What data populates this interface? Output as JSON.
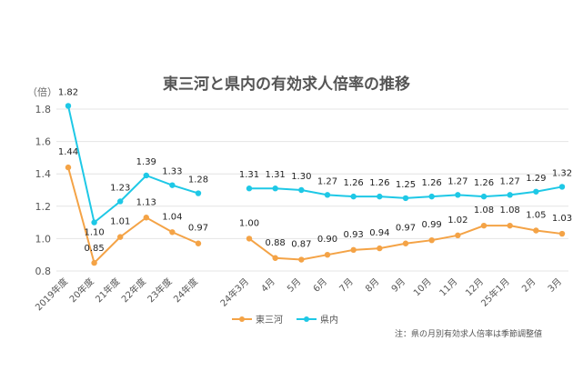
{
  "chart_data": {
    "type": "line",
    "title": "東三河と県内の有効求人倍率の推移",
    "unit_label": "（倍）",
    "note": "注：県の月別有効求人倍率は季節調整値",
    "ylim": [
      0.8,
      1.8
    ],
    "yticks": [
      "0.8",
      "1.0",
      "1.2",
      "1.4",
      "1.6",
      "1.8"
    ],
    "grid": "horizontal",
    "legend_position": "bottom-left",
    "colors": {
      "higashi_mikawa": "#f4a346",
      "kennai": "#1ec8e6"
    },
    "groups": [
      {
        "categories": [
          "2019年度",
          "20年度",
          "21年度",
          "22年度",
          "23年度",
          "24年度"
        ],
        "series": [
          {
            "name": "県内",
            "values": [
              1.82,
              1.1,
              1.23,
              1.39,
              1.33,
              1.28
            ],
            "labels": [
              "1.82",
              "1.10",
              "1.23",
              "1.39",
              "1.33",
              "1.28"
            ]
          },
          {
            "name": "東三河",
            "values": [
              1.44,
              0.85,
              1.01,
              1.13,
              1.04,
              0.97
            ],
            "labels": [
              "1.44",
              "0.85",
              "1.01",
              "1.13",
              "1.04",
              "0.97"
            ]
          }
        ]
      },
      {
        "categories": [
          "24年3月",
          "4月",
          "5月",
          "6月",
          "7月",
          "8月",
          "9月",
          "10月",
          "11月",
          "12月",
          "25年1月",
          "2月",
          "3月"
        ],
        "series": [
          {
            "name": "県内",
            "values": [
              1.31,
              1.31,
              1.3,
              1.27,
              1.26,
              1.26,
              1.25,
              1.26,
              1.27,
              1.26,
              1.27,
              1.29,
              1.32
            ],
            "labels": [
              "1.31",
              "1.31",
              "1.30",
              "1.27",
              "1.26",
              "1.26",
              "1.25",
              "1.26",
              "1.27",
              "1.26",
              "1.27",
              "1.29",
              "1.32"
            ]
          },
          {
            "name": "東三河",
            "values": [
              1.0,
              0.88,
              0.87,
              0.9,
              0.93,
              0.94,
              0.97,
              0.99,
              1.02,
              1.08,
              1.08,
              1.05,
              1.03
            ],
            "labels": [
              "1.00",
              "0.88",
              "0.87",
              "0.90",
              "0.93",
              "0.94",
              "0.97",
              "0.99",
              "1.02",
              "1.08",
              "1.08",
              "1.05",
              "1.03"
            ]
          }
        ]
      }
    ],
    "legend": [
      "東三河",
      "県内"
    ]
  }
}
